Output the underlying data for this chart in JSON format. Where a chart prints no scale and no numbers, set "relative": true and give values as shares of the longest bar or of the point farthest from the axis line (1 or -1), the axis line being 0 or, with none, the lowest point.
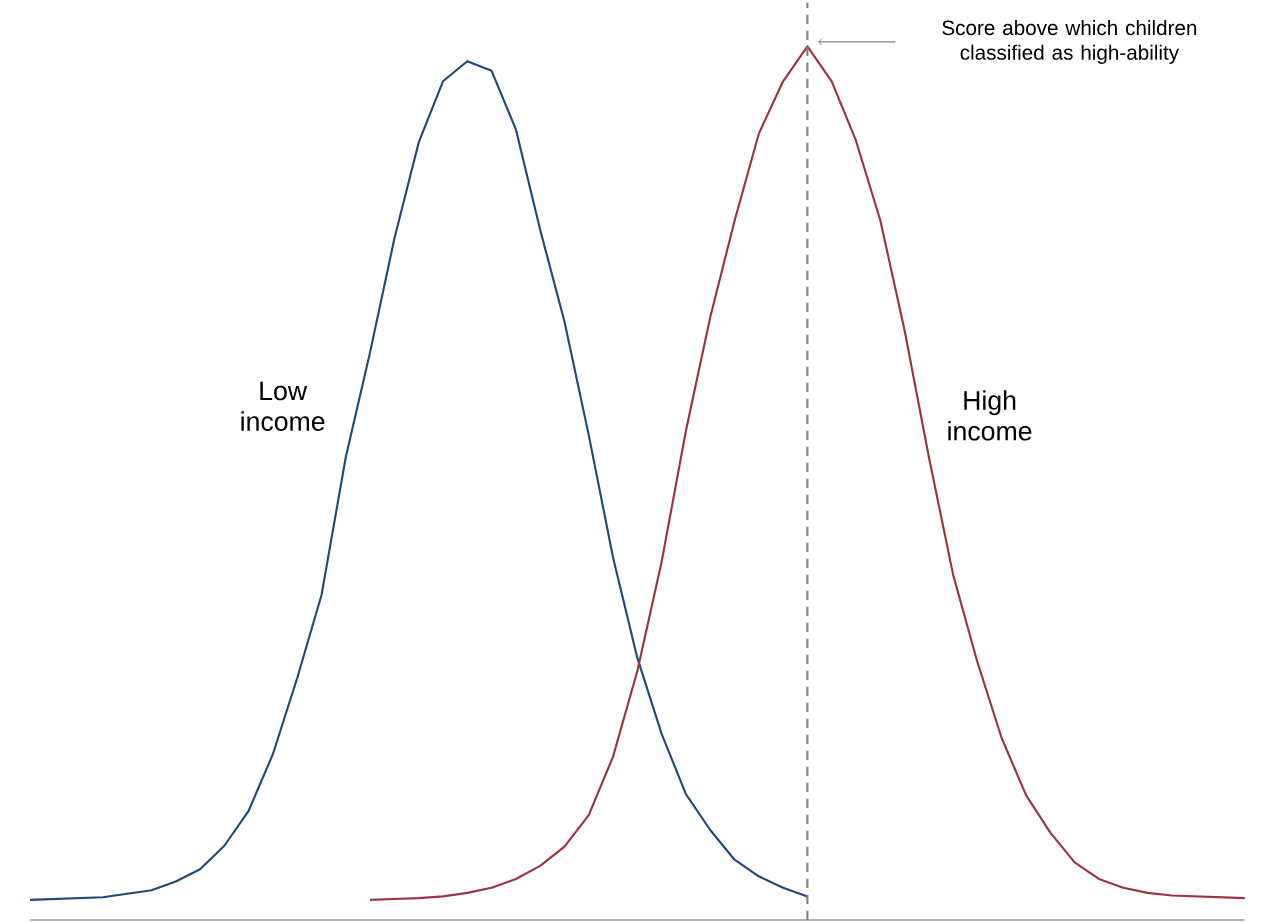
{
  "chart_data": {
    "type": "line",
    "relative": true,
    "marker": "none",
    "line_style": "solid",
    "categories": [
      null,
      null,
      null,
      null,
      null,
      null,
      null,
      null,
      null,
      null,
      null,
      null,
      null,
      null,
      null,
      null,
      null,
      null,
      null,
      null,
      null,
      null,
      null,
      null,
      null,
      null,
      null,
      null,
      null,
      null,
      null,
      null,
      null,
      null,
      null,
      null,
      null,
      null,
      null,
      null,
      null,
      null,
      null,
      null,
      null,
      null,
      null,
      null,
      null,
      null,
      null
    ],
    "series": [
      {
        "name": "Low income",
        "color": "#1f4a78",
        "values": [
          0.023,
          0.024,
          0.025,
          0.026,
          0.03,
          0.034,
          0.044,
          0.058,
          0.085,
          0.125,
          0.19,
          0.277,
          0.372,
          0.53,
          0.65,
          0.78,
          0.89,
          0.96,
          0.983,
          0.972,
          0.905,
          0.79,
          0.685,
          0.555,
          0.415,
          0.3,
          0.213,
          0.144,
          0.103,
          0.069,
          0.05,
          0.037,
          0.027,
          null,
          null,
          null,
          null,
          null,
          null,
          null,
          null,
          null,
          null,
          null,
          null,
          null,
          null,
          null,
          null,
          null,
          null
        ]
      },
      {
        "name": "High income",
        "color": "#9b3440",
        "values": [
          null,
          null,
          null,
          null,
          null,
          null,
          null,
          null,
          null,
          null,
          null,
          null,
          null,
          null,
          0.023,
          0.024,
          0.025,
          0.027,
          0.031,
          0.037,
          0.047,
          0.062,
          0.084,
          0.12,
          0.187,
          0.285,
          0.41,
          0.56,
          0.69,
          0.8,
          0.9,
          0.96,
          1,
          0.96,
          0.892,
          0.801,
          0.675,
          0.53,
          0.395,
          0.295,
          0.208,
          0.143,
          0.1,
          0.066,
          0.047,
          0.037,
          0.031,
          0.028,
          0.027,
          0.026,
          0.025
        ]
      }
    ],
    "annotations": [
      "Score above which children classified as high-ability"
    ]
  }
}
